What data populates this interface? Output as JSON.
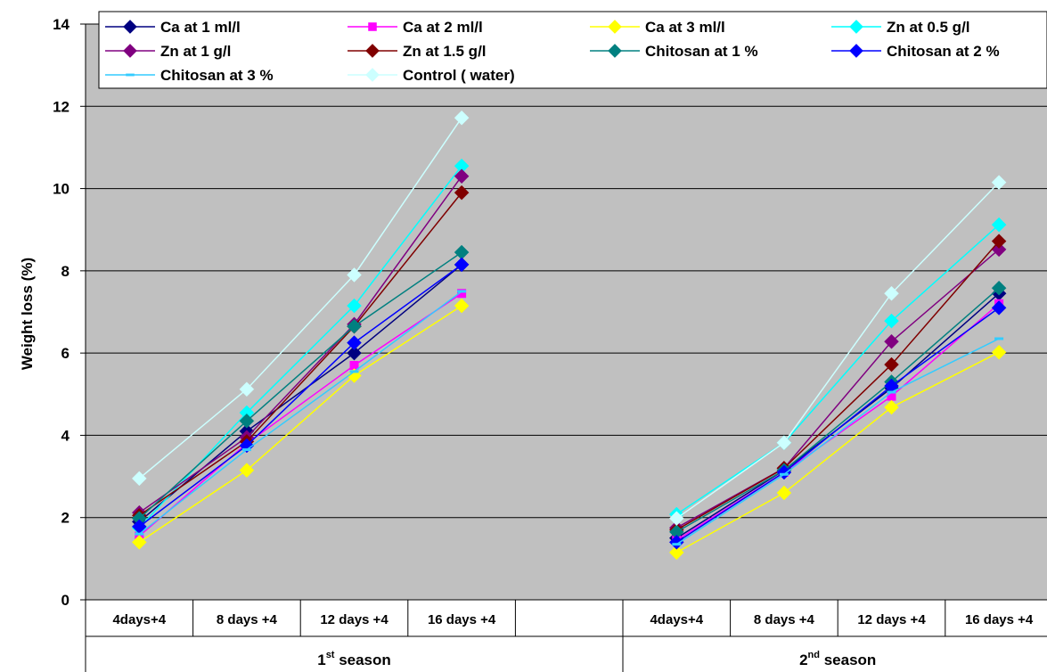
{
  "chart_data": {
    "type": "line",
    "ylabel": "Weight loss (%)",
    "ylim": [
      0,
      14
    ],
    "yticks": [
      "0",
      "2",
      "4",
      "6",
      "8",
      "10",
      "12",
      "14"
    ],
    "grid": true,
    "legend_position": "top",
    "plot_background": "#c0c0c0",
    "groups": [
      {
        "label_main": "1",
        "label_sup": "st",
        "label_rest": " season",
        "categories": [
          "4days+4",
          "8 days +4",
          "12 days +4",
          "16 days +4",
          ""
        ]
      },
      {
        "label_main": "2",
        "label_sup": "nd",
        "label_rest": " season",
        "categories": [
          "4days+4",
          "8 days +4",
          "12 days +4",
          "16 days +4"
        ]
      }
    ],
    "series": [
      {
        "name": "Ca  at 1 ml/l",
        "color": "#000080",
        "marker": "diamond",
        "values": [
          [
            1.9,
            4.1,
            6.0,
            8.15
          ],
          [
            1.5,
            3.15,
            5.15,
            7.45
          ]
        ]
      },
      {
        "name": "Ca at 2 ml/l",
        "color": "#ff00ff",
        "marker": "square",
        "values": [
          [
            1.55,
            3.8,
            5.7,
            7.45
          ],
          [
            1.45,
            3.1,
            4.95,
            7.2
          ]
        ]
      },
      {
        "name": "Ca at 3 ml/l",
        "color": "#ffff00",
        "marker": "diamond",
        "values": [
          [
            1.4,
            3.15,
            5.45,
            7.15
          ],
          [
            1.15,
            2.6,
            4.68,
            6.02
          ]
        ]
      },
      {
        "name": "Zn  at 0.5 g/l",
        "color": "#00ffff",
        "marker": "diamond",
        "values": [
          [
            1.75,
            4.55,
            7.15,
            10.55
          ],
          [
            2.08,
            3.82,
            6.78,
            9.12
          ]
        ]
      },
      {
        "name": "Zn at 1 g/l",
        "color": "#800080",
        "marker": "diamond",
        "values": [
          [
            2.12,
            3.95,
            6.7,
            10.3
          ],
          [
            1.75,
            3.2,
            6.28,
            8.52
          ]
        ]
      },
      {
        "name": "Zn  at 1.5 g/l",
        "color": "#800000",
        "marker": "diamond",
        "values": [
          [
            2.05,
            3.85,
            6.65,
            9.9
          ],
          [
            1.7,
            3.2,
            5.72,
            8.72
          ]
        ]
      },
      {
        "name": "Chitosan at 1 %",
        "color": "#008080",
        "marker": "diamond",
        "values": [
          [
            1.98,
            4.35,
            6.65,
            8.45
          ],
          [
            1.65,
            3.15,
            5.3,
            7.58
          ]
        ]
      },
      {
        "name": "Chitosan at 2 %",
        "color": "#0000ff",
        "marker": "diamond",
        "values": [
          [
            1.78,
            3.75,
            6.25,
            8.15
          ],
          [
            1.4,
            3.1,
            5.2,
            7.1
          ]
        ]
      },
      {
        "name": "Chitosan at 3 %",
        "color": "#33ccff",
        "marker": "dash",
        "values": [
          [
            1.6,
            3.65,
            5.55,
            7.5
          ],
          [
            1.35,
            3.05,
            5.05,
            6.35
          ]
        ]
      },
      {
        "name": "Control ( water)",
        "color": "#ccffff",
        "marker": "diamond",
        "values": [
          [
            2.95,
            5.12,
            7.9,
            11.72
          ],
          [
            1.98,
            3.82,
            7.45,
            10.15
          ]
        ]
      }
    ]
  }
}
